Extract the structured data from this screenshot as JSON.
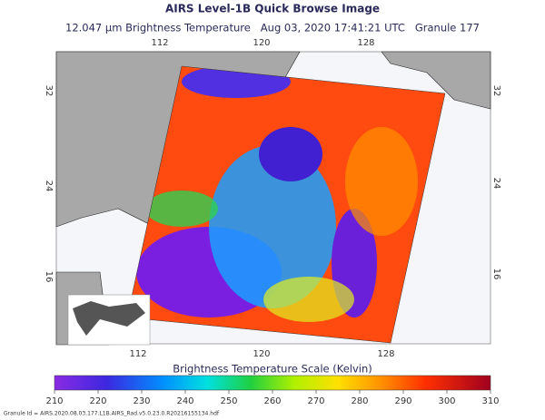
{
  "header": {
    "title": "AIRS Level-1B Quick Browse Image",
    "subtitle": "12.047 µm Brightness Temperature   Aug 03, 2020 17:41:21 UTC   Granule 177"
  },
  "map": {
    "top_longitudes": [
      112,
      120,
      128
    ],
    "bottom_longitudes": [
      112,
      120,
      128
    ],
    "left_latitudes": [
      32,
      24,
      16
    ],
    "right_latitudes": [
      32,
      24,
      16
    ]
  },
  "colorbar": {
    "title": "Brightness Temperature Scale (Kelvin)",
    "range": [
      210,
      310
    ],
    "ticks": [
      210,
      220,
      230,
      240,
      250,
      260,
      270,
      280,
      290,
      300,
      310
    ]
  },
  "footer": "Granule Id = AIRS.2020.08.03.177.L1B.AIRS_Rad.v5.0.23.0.R20216155134.hdf"
}
